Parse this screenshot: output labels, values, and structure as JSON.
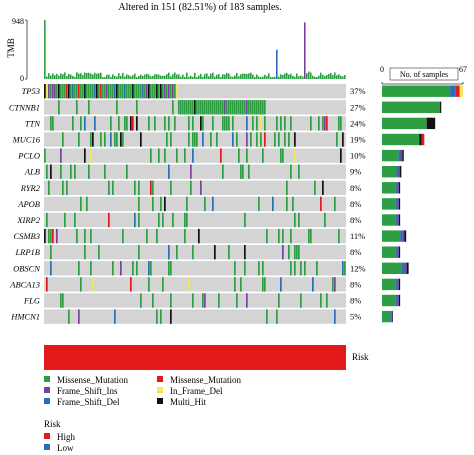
{
  "chart_data": {
    "type": "heatmap",
    "title": "Altered in 151 (82.51%) of 183 samples.",
    "n_samples": 183,
    "n_altered": 151,
    "tmb": {
      "ylabel": "TMB",
      "ylim": [
        0,
        948
      ],
      "ticks": [
        0,
        948
      ]
    },
    "genes": [
      "TP53",
      "CTNNB1",
      "TTN",
      "MUC16",
      "PCLO",
      "ALB",
      "RYR2",
      "APOB",
      "XIRP2",
      "CSMB3",
      "LRP1B",
      "OBSCN",
      "ABCA13",
      "FLG",
      "HMCN1"
    ],
    "percent_labels": [
      "37%",
      "27%",
      "24%",
      "19%",
      "10%",
      "9%",
      "8%",
      "8%",
      "8%",
      "11%",
      "8%",
      "12%",
      "8%",
      "8%",
      "5%"
    ],
    "samples_axis": {
      "label": "No. of samples",
      "xlim": [
        0,
        67
      ],
      "ticks": [
        0,
        67
      ]
    },
    "risk_label": "Risk",
    "mutation_legend": [
      {
        "label": "Missense_Mutation",
        "color": "#2e9e43"
      },
      {
        "label": "Missense_Mutation",
        "color": "#e31a1c"
      },
      {
        "label": "Frame_Shift_Ins",
        "color": "#7b3fa0"
      },
      {
        "label": "In_Frame_Del",
        "color": "#f5e65a"
      },
      {
        "label": "Frame_Shift_Del",
        "color": "#2a6fb5"
      },
      {
        "label": "Multi_Hit",
        "color": "#111111"
      }
    ],
    "risk_legend": {
      "title": "Risk",
      "items": [
        {
          "label": "High",
          "color": "#e31a1c"
        },
        {
          "label": "Low",
          "color": "#2a6fb5"
        }
      ]
    },
    "colors": {
      "missense": "#2e9e43",
      "missense_red": "#e31a1c",
      "frame_shift_ins": "#7b3fa0",
      "in_frame_del": "#f5e65a",
      "frame_shift_del": "#2a6fb5",
      "multi_hit": "#111111",
      "background_cell": "#d4d4d4",
      "risk_high": "#e31a1c",
      "tmb_bar": "#2e9e43"
    }
  }
}
